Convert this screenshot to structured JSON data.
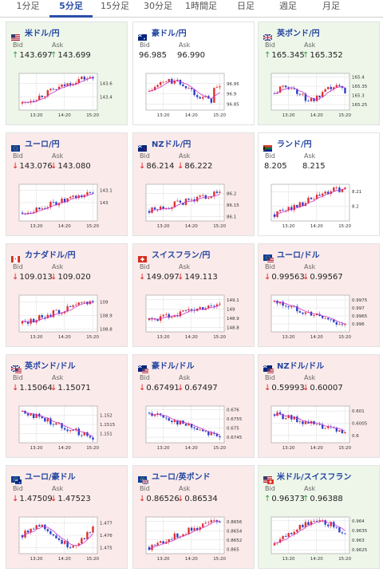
{
  "tabs": [
    {
      "label": "1分足",
      "active": false
    },
    {
      "label": "5分足",
      "active": true
    },
    {
      "label": "15分足",
      "active": false
    },
    {
      "label": "30分足",
      "active": false
    },
    {
      "label": "1時間足",
      "active": false
    },
    {
      "label": "日足",
      "active": false
    },
    {
      "label": "週足",
      "active": false
    },
    {
      "label": "月足",
      "active": false
    }
  ],
  "labels": {
    "bid": "Bid",
    "ask": "Ask"
  },
  "x_ticks": [
    "13:20",
    "14:20",
    "15:20"
  ],
  "colors": {
    "up_bg": "#eef6ea",
    "down_bg": "#fbeaea",
    "up_arrow": "#2a9d3a",
    "down_arrow": "#e02020",
    "candle_up": "#e03030",
    "candle_down": "#2840c8",
    "ma_line": "#cc33cc",
    "accent": "#2a4fa8"
  },
  "pairs": [
    {
      "name": "米ドル/円",
      "flag": "us-flag",
      "dir": "up",
      "bid": "143.697",
      "ask": "143.699",
      "y_ticks": [
        "143.6",
        "143.4"
      ],
      "ylim": [
        143.2,
        143.75
      ]
    },
    {
      "name": "豪ドル/円",
      "flag": "au-flag",
      "dir": "none",
      "bid": "96.985",
      "ask": "96.990",
      "y_ticks": [
        "96.95",
        "96.9",
        "96.85"
      ],
      "ylim": [
        96.82,
        97.0
      ]
    },
    {
      "name": "英ポンド/円",
      "flag": "uk-flag",
      "dir": "up",
      "bid": "165.345",
      "ask": "165.352",
      "y_ticks": [
        "165.4",
        "165.35",
        "165.3",
        "165.25"
      ],
      "ylim": [
        165.22,
        165.42
      ]
    },
    {
      "name": "ユーロ/円",
      "flag": "eu-flag",
      "dir": "down",
      "bid": "143.076",
      "ask": "143.080",
      "y_ticks": [
        "143.1",
        "143"
      ],
      "ylim": [
        142.85,
        143.15
      ]
    },
    {
      "name": "NZドル/円",
      "flag": "nz-flag",
      "dir": "down",
      "bid": "86.214",
      "ask": "86.222",
      "y_ticks": [
        "86.2",
        "86.15",
        "86.1"
      ],
      "ylim": [
        86.08,
        86.24
      ]
    },
    {
      "name": "ランド/円",
      "flag": "za-flag",
      "dir": "none",
      "bid": "8.205",
      "ask": "8.215",
      "y_ticks": [
        "8.21",
        "8.2"
      ],
      "ylim": [
        8.19,
        8.215
      ]
    },
    {
      "name": "カナダドル/円",
      "flag": "ca-flag",
      "dir": "down",
      "bid": "109.013",
      "ask": "109.020",
      "y_ticks": [
        "109",
        "108.9",
        "108.8"
      ],
      "ylim": [
        108.78,
        109.05
      ]
    },
    {
      "name": "スイスフラン/円",
      "flag": "ch-flag",
      "dir": "down",
      "bid": "149.097",
      "ask": "149.113",
      "y_ticks": [
        "149.1",
        "149",
        "148.9",
        "148.8"
      ],
      "ylim": [
        148.75,
        149.15
      ]
    },
    {
      "name": "ユーロ/ドル",
      "flag": "eu-us-flag",
      "dir": "down",
      "bid": "0.99563",
      "ask": "0.99567",
      "y_ticks": [
        "0.9975",
        "0.997",
        "0.9965",
        "0.996"
      ],
      "ylim": [
        0.9955,
        0.9978
      ]
    },
    {
      "name": "英ポンド/ドル",
      "flag": "uk-us-flag",
      "dir": "down",
      "bid": "1.15064",
      "ask": "1.15071",
      "y_ticks": [
        "1.152",
        "1.1515",
        "1.151"
      ],
      "ylim": [
        1.1505,
        1.1525
      ]
    },
    {
      "name": "豪ドル/ドル",
      "flag": "au-us-flag",
      "dir": "down",
      "bid": "0.67491",
      "ask": "0.67497",
      "y_ticks": [
        "0.676",
        "0.6755",
        "0.675",
        "0.6745"
      ],
      "ylim": [
        0.6742,
        0.6762
      ]
    },
    {
      "name": "NZドル/ドル",
      "flag": "nz-us-flag",
      "dir": "down",
      "bid": "0.59993",
      "ask": "0.60007",
      "y_ticks": [
        "0.601",
        "0.6005",
        "0.6"
      ],
      "ylim": [
        0.5997,
        0.6012
      ]
    },
    {
      "name": "ユーロ/豪ドル",
      "flag": "eu-au-flag",
      "dir": "down",
      "bid": "1.47509",
      "ask": "1.47523",
      "y_ticks": [
        "1.477",
        "1.476",
        "1.475"
      ],
      "ylim": [
        1.4745,
        1.4775
      ]
    },
    {
      "name": "ユーロ/英ポンド",
      "flag": "eu-uk-flag",
      "dir": "down",
      "bid": "0.86526",
      "ask": "0.86534",
      "y_ticks": [
        "0.8656",
        "0.8654",
        "0.8652",
        "0.865"
      ],
      "ylim": [
        0.8649,
        0.8657
      ]
    },
    {
      "name": "米ドル/スイスフラン",
      "flag": "us-ch-flag",
      "dir": "up",
      "bid": "0.96373",
      "ask": "0.96388",
      "y_ticks": [
        "0.964",
        "0.9635",
        "0.963",
        "0.9625"
      ],
      "ylim": [
        0.9623,
        0.9642
      ]
    }
  ]
}
